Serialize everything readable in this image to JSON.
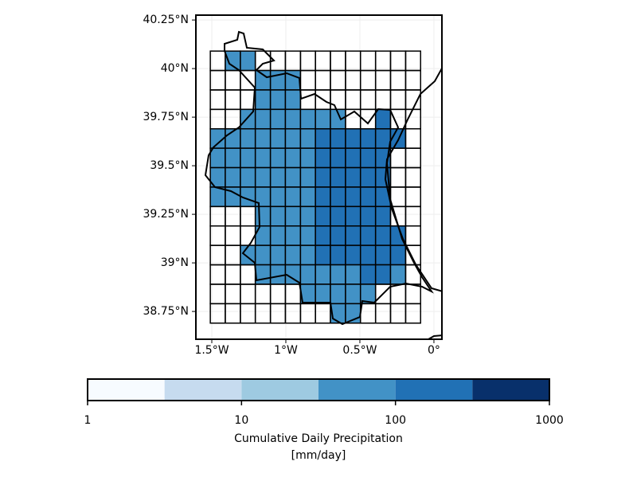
{
  "chart_data": {
    "type": "grid-map",
    "xlim": [
      -1.6075,
      0.054
    ],
    "ylim": [
      38.607,
      40.275
    ],
    "xticks": [
      {
        "value": -1.5,
        "label": "1.5°W"
      },
      {
        "value": -1,
        "label": "1°W"
      },
      {
        "value": -0.5,
        "label": "0.5°W"
      },
      {
        "value": 0,
        "label": "0°"
      }
    ],
    "yticks": [
      {
        "value": 38.75,
        "label": "38.75°N"
      },
      {
        "value": 39,
        "label": "39°N"
      },
      {
        "value": 39.25,
        "label": "39.25°N"
      },
      {
        "value": 39.5,
        "label": "39.5°N"
      },
      {
        "value": 39.75,
        "label": "39.75°N"
      },
      {
        "value": 40,
        "label": "40°N"
      },
      {
        "value": 40.25,
        "label": "40.25°N"
      }
    ],
    "grid": true,
    "lon_edges": [
      -1.51,
      -1.409,
      -1.307,
      -1.206,
      -1.104,
      -1.003,
      -0.901,
      -0.8,
      -0.699,
      -0.597,
      -0.496,
      -0.394,
      -0.293,
      -0.191,
      -0.09
    ],
    "lat_edges": [
      40.09,
      39.99,
      39.89,
      39.79,
      39.69,
      39.59,
      39.49,
      39.39,
      39.29,
      39.19,
      39.09,
      38.99,
      38.89,
      38.79,
      38.69
    ],
    "values": [
      [
        null,
        50,
        50,
        null,
        null,
        null,
        null,
        null,
        null,
        null,
        null,
        null,
        null,
        null
      ],
      [
        null,
        null,
        null,
        50,
        50,
        50,
        null,
        null,
        null,
        null,
        null,
        null,
        null,
        null
      ],
      [
        null,
        null,
        null,
        50,
        50,
        50,
        null,
        null,
        null,
        null,
        null,
        null,
        null,
        null
      ],
      [
        null,
        null,
        50,
        50,
        50,
        50,
        50,
        50,
        50,
        null,
        null,
        150,
        null,
        null
      ],
      [
        50,
        50,
        50,
        50,
        50,
        50,
        50,
        150,
        150,
        150,
        150,
        150,
        150,
        null
      ],
      [
        50,
        50,
        50,
        50,
        50,
        50,
        50,
        150,
        150,
        150,
        150,
        150,
        null,
        null
      ],
      [
        50,
        50,
        50,
        50,
        50,
        50,
        50,
        150,
        150,
        150,
        150,
        150,
        null,
        null
      ],
      [
        50,
        50,
        50,
        50,
        50,
        50,
        50,
        150,
        150,
        150,
        150,
        150,
        null,
        null
      ],
      [
        null,
        null,
        null,
        50,
        50,
        50,
        50,
        150,
        150,
        150,
        150,
        150,
        null,
        null
      ],
      [
        null,
        null,
        null,
        50,
        50,
        50,
        50,
        150,
        150,
        150,
        150,
        150,
        150,
        null
      ],
      [
        null,
        null,
        50,
        50,
        50,
        50,
        50,
        150,
        150,
        150,
        150,
        150,
        150,
        null
      ],
      [
        null,
        null,
        null,
        50,
        50,
        50,
        50,
        50,
        50,
        50,
        150,
        150,
        50,
        null
      ],
      [
        null,
        null,
        null,
        null,
        null,
        null,
        50,
        50,
        50,
        50,
        50,
        null,
        null,
        null
      ],
      [
        null,
        null,
        null,
        null,
        null,
        null,
        null,
        null,
        50,
        50,
        null,
        null,
        null,
        null
      ]
    ],
    "colorbar": {
      "bounds": [
        1,
        3.1623,
        10,
        31.623,
        100,
        316.23,
        1000
      ],
      "colors": [
        "#f7fbff",
        "#c6dbef",
        "#9ecae1",
        "#4292c6",
        "#2171b5",
        "#08306b"
      ],
      "lim": [
        1,
        1000
      ],
      "ticks": [
        1,
        10,
        100,
        1000
      ],
      "log": true,
      "label": [
        "Cumulative Daily Precipitation",
        "[mm/day]"
      ]
    }
  }
}
